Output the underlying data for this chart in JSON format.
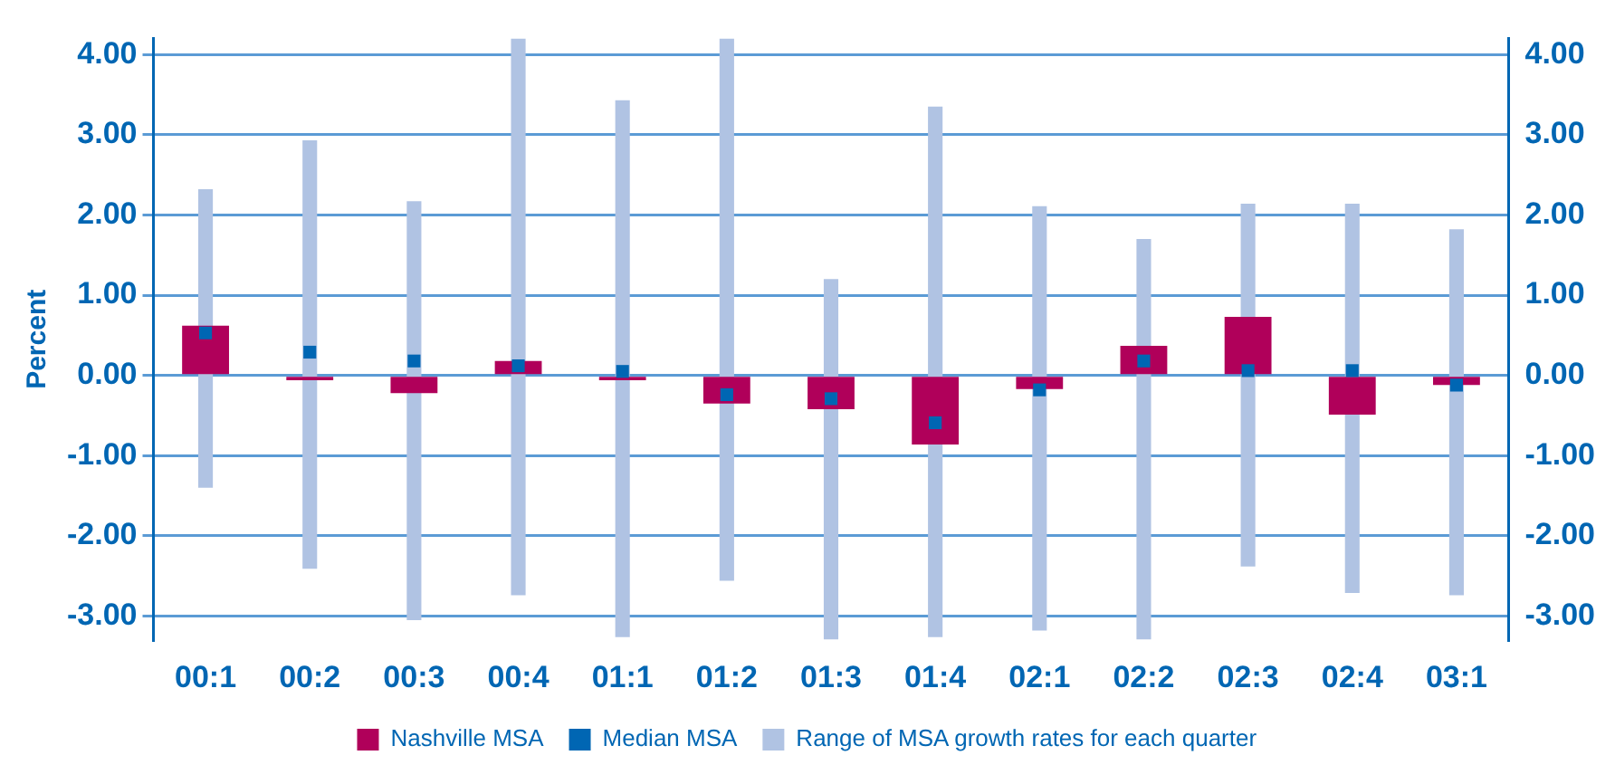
{
  "chart_data": {
    "type": "bar",
    "ylabel": "Percent",
    "categories": [
      "00:1",
      "00:2",
      "00:3",
      "00:4",
      "01:1",
      "01:2",
      "01:3",
      "01:4",
      "02:1",
      "02:2",
      "02:3",
      "02:4",
      "03:1"
    ],
    "series": [
      {
        "name": "Nashville MSA",
        "color": "#b0005a",
        "values": [
          0.62,
          -0.06,
          -0.22,
          0.18,
          -0.06,
          -0.35,
          -0.42,
          -0.86,
          -0.17,
          0.37,
          0.73,
          -0.49,
          -0.12
        ]
      },
      {
        "name": "Median MSA",
        "type": "scatter",
        "color": "#0066b3",
        "values": [
          0.53,
          0.29,
          0.18,
          0.12,
          0.05,
          -0.24,
          -0.29,
          -0.59,
          -0.18,
          0.18,
          0.06,
          0.06,
          -0.12
        ]
      },
      {
        "name": "Range of MSA growth rates for each quarter",
        "color": "#b0c3e3",
        "base": [
          -1.4,
          -2.41,
          -3.05,
          -2.74,
          -3.26,
          -2.56,
          -3.29,
          -3.26,
          -3.18,
          -3.29,
          -2.38,
          -2.71,
          -2.74
        ],
        "values": [
          3.72,
          5.34,
          5.22,
          6.94,
          6.69,
          6.76,
          4.49,
          6.61,
          5.29,
          4.99,
          4.52,
          4.85,
          4.56
        ]
      }
    ],
    "ylim": [
      -3.3,
      4.2
    ],
    "yticks": [
      {
        "value": -3,
        "label": "-3.00"
      },
      {
        "value": -2,
        "label": "-2.00"
      },
      {
        "value": -1,
        "label": "-1.00"
      },
      {
        "value": 0,
        "label": "0.00"
      },
      {
        "value": 1,
        "label": "1.00"
      },
      {
        "value": 2,
        "label": "2.00"
      },
      {
        "value": 3,
        "label": "3.00"
      },
      {
        "value": 4,
        "label": "4.00"
      }
    ],
    "y2lim": [
      -3.3,
      4.2
    ],
    "y2ticks": [
      {
        "value": -3,
        "label": "-3.00"
      },
      {
        "value": -2,
        "label": "-2.00"
      },
      {
        "value": -1,
        "label": "-1.00"
      },
      {
        "value": 0,
        "label": "0.00"
      },
      {
        "value": 1,
        "label": "1.00"
      },
      {
        "value": 2,
        "label": "2.00"
      },
      {
        "value": 3,
        "label": "3.00"
      },
      {
        "value": 4,
        "label": "4.00"
      }
    ],
    "grid": "y",
    "legend": "bottom",
    "marker": "square"
  }
}
